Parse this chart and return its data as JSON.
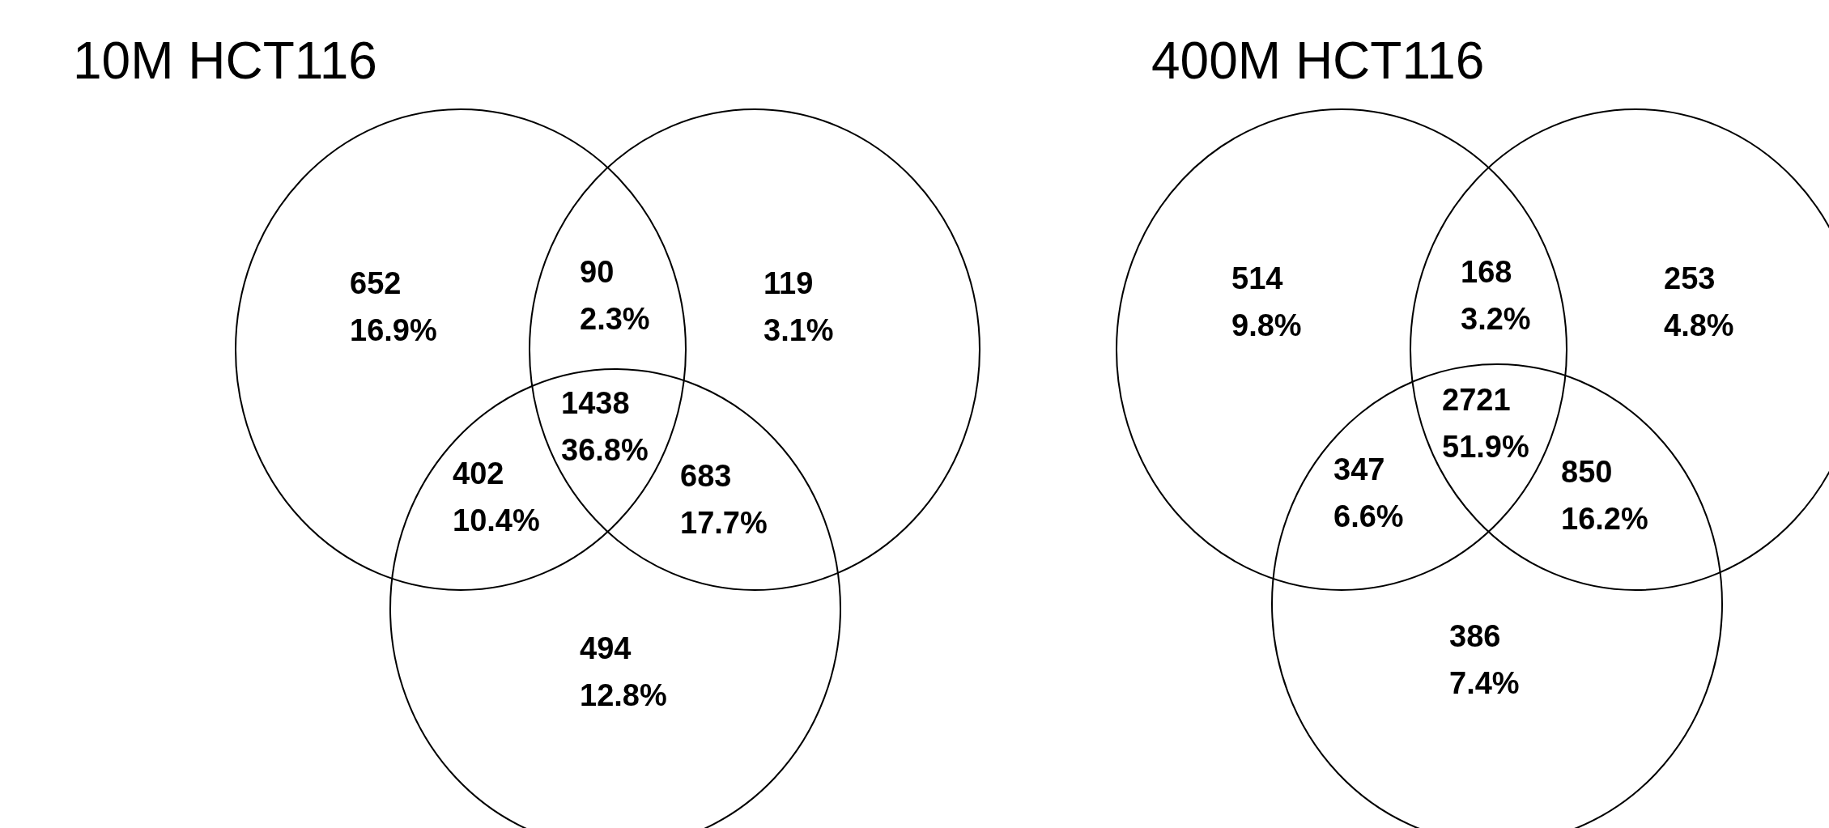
{
  "chart_data": [
    {
      "type": "other",
      "title": "10M HCT116",
      "categories": [
        null,
        null,
        null,
        null,
        null,
        null,
        null
      ],
      "values": [
        652,
        90,
        119,
        1438,
        402,
        683,
        494
      ],
      "value_labels": [
        "652\n16.9%",
        "90\n2.3%",
        "119\n3.1%",
        "1438\n36.8%",
        "402\n10.4%",
        "683\n17.7%",
        "494\n12.8%"
      ]
    },
    {
      "type": "other",
      "title": "400M HCT116",
      "categories": [
        null,
        null,
        null,
        null,
        null,
        null,
        null
      ],
      "values": [
        514,
        168,
        253,
        2721,
        347,
        850,
        386
      ],
      "value_labels": [
        "514\n9.8%",
        "168\n3.2%",
        "253\n4.8%",
        "2721\n51.9%",
        "347\n6.6%",
        "850\n16.2%",
        "386\n7.4%"
      ]
    }
  ]
}
